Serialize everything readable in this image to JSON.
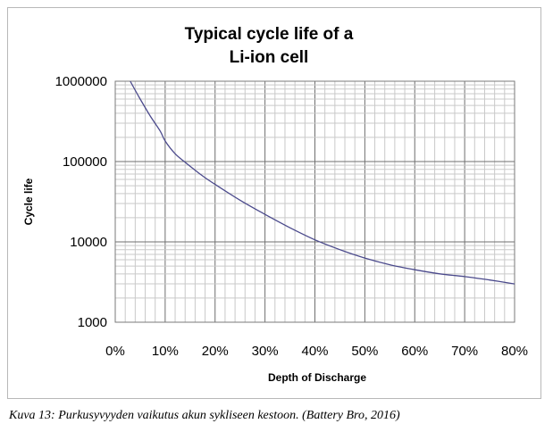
{
  "chart_data": {
    "type": "line",
    "title_lines": [
      "Typical  cycle life of a",
      "Li-ion cell"
    ],
    "xlabel": "Depth of Discharge",
    "ylabel": "Cycle life",
    "x_ticks": [
      "0%",
      "10%",
      "20%",
      "30%",
      "40%",
      "50%",
      "60%",
      "70%",
      "80%"
    ],
    "y_ticks": [
      "1000",
      "10000",
      "100000",
      "1000000"
    ],
    "xlim": [
      0,
      80
    ],
    "ylim": [
      1000,
      1000000
    ],
    "y_scale": "log",
    "grid": true,
    "line_color": "#4b4a8c",
    "series": [
      {
        "x": [
          3,
          5,
          7,
          9,
          10,
          12,
          14,
          16,
          18,
          20,
          25,
          30,
          35,
          40,
          45,
          50,
          55,
          60,
          65,
          70,
          75,
          80
        ],
        "values": [
          1000000,
          600000,
          370000,
          240000,
          180000,
          125000,
          98000,
          78000,
          63000,
          52000,
          33000,
          22000,
          15000,
          10600,
          8000,
          6300,
          5200,
          4500,
          4000,
          3700,
          3350,
          3000
        ]
      }
    ]
  },
  "caption": "Kuva 13: Purkusyvyyden vaikutus akun sykliseen kestoon. (Battery Bro, 2016)"
}
